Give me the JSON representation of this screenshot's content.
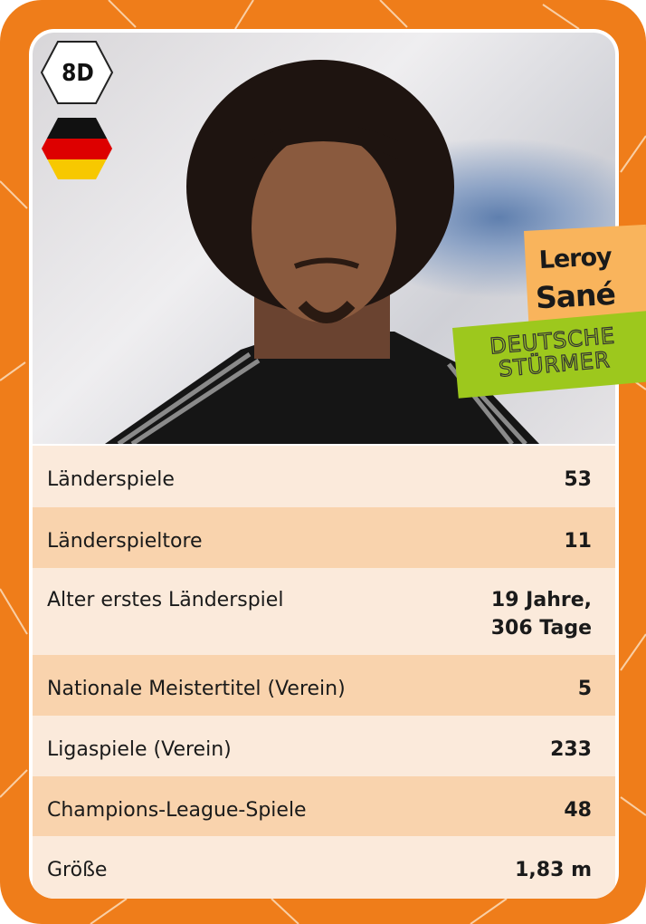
{
  "card": {
    "code": "8D",
    "country_flag": "germany-flag-icon",
    "first_name": "Leroy",
    "last_name": "Sané",
    "category_line1": "DEUTSCHE",
    "category_line2": "STÜRMER",
    "colors": {
      "border": "#ef7d1a",
      "name_box": "#f9b45c",
      "category_box": "#9dc81d",
      "row_light": "#fbeadb",
      "row_dark": "#f9d3ad"
    }
  },
  "stats": [
    {
      "label": "Länderspiele",
      "value": "53"
    },
    {
      "label": "Länderspieltore",
      "value": "11"
    },
    {
      "label": "Alter erstes Länderspiel",
      "value": "19 Jahre,",
      "value2": "306 Tage"
    },
    {
      "label": "Nationale Meistertitel (Verein)",
      "value": "5"
    },
    {
      "label": "Ligaspiele (Verein)",
      "value": "233"
    },
    {
      "label": "Champions-League-Spiele",
      "value": "48"
    },
    {
      "label": "Größe",
      "value": "1,83 m"
    }
  ]
}
